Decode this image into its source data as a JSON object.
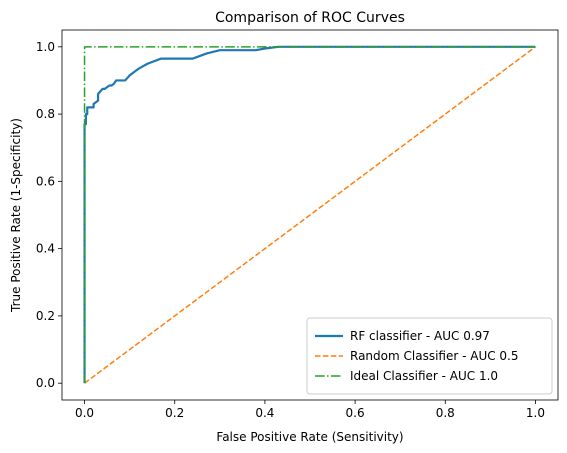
{
  "chart_data": {
    "type": "line",
    "title": "Comparison of ROC Curves",
    "xlabel": "False Positive Rate (Sensitivity)",
    "ylabel": "True Positive Rate (1-Specificity)",
    "xlim": [
      -0.05,
      1.05
    ],
    "ylim": [
      -0.05,
      1.05
    ],
    "xticks": [
      "0.0",
      "0.2",
      "0.4",
      "0.6",
      "0.8",
      "1.0"
    ],
    "yticks": [
      "0.0",
      "0.2",
      "0.4",
      "0.6",
      "0.8",
      "1.0"
    ],
    "grid": false,
    "legend_position": "lower-right",
    "series": [
      {
        "name": "RF classifier - AUC 0.97",
        "color": "#1f77b4",
        "style": "solid",
        "x": [
          0,
          0,
          0.003,
          0.003,
          0.006,
          0.006,
          0.02,
          0.02,
          0.03,
          0.03,
          0.04,
          0.045,
          0.05,
          0.055,
          0.06,
          0.065,
          0.07,
          0.08,
          0.09,
          0.1,
          0.12,
          0.14,
          0.17,
          0.24,
          0.25,
          0.27,
          0.3,
          0.38,
          0.4,
          0.43,
          1.0
        ],
        "y": [
          0,
          0.77,
          0.77,
          0.8,
          0.8,
          0.82,
          0.82,
          0.83,
          0.84,
          0.86,
          0.875,
          0.875,
          0.88,
          0.885,
          0.885,
          0.89,
          0.9,
          0.9,
          0.9,
          0.915,
          0.935,
          0.95,
          0.965,
          0.965,
          0.97,
          0.98,
          0.99,
          0.99,
          0.995,
          1.0,
          1.0
        ]
      },
      {
        "name": "Random Classifier - AUC 0.5",
        "color": "#ff7f0e",
        "style": "dashed",
        "x": [
          0,
          1
        ],
        "y": [
          0,
          1
        ]
      },
      {
        "name": "Ideal Classifier - AUC 1.0",
        "color": "#2ca02c",
        "style": "dashdot",
        "x": [
          0,
          0,
          1
        ],
        "y": [
          0,
          1,
          1
        ]
      }
    ]
  }
}
